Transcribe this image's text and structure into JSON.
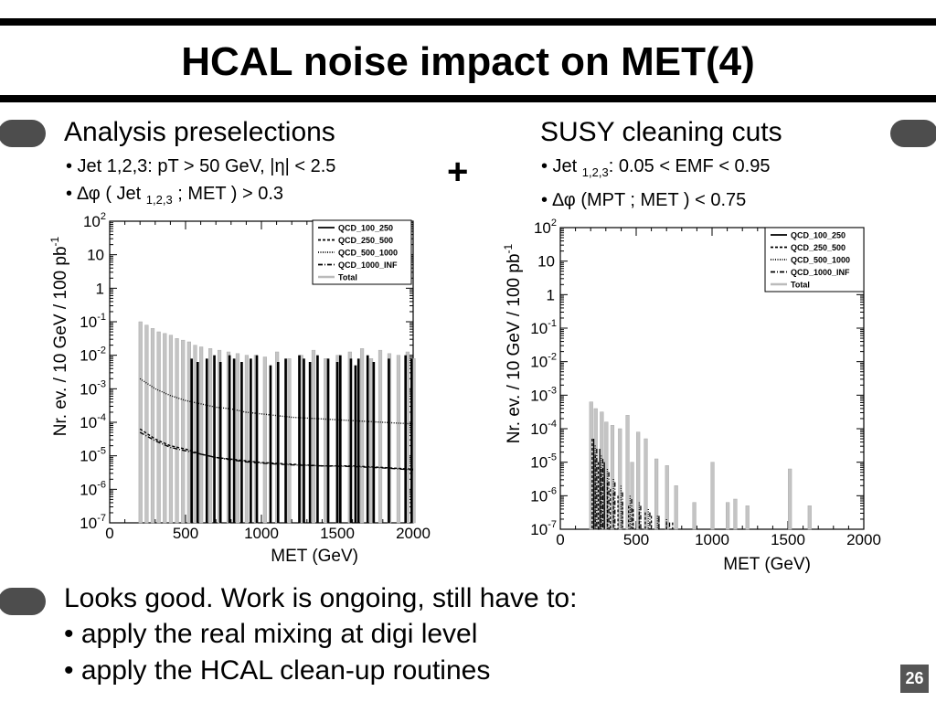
{
  "slide": {
    "title": "HCAL noise impact on MET(4)",
    "page_number": "26",
    "left_heading": "Analysis preselections",
    "left_bullets": [
      "• Jet 1,2,3: pT > 50 GeV, |η| < 2.5"
    ],
    "left_bullet2": {
      "pre": "• ∆φ ( Jet ",
      "sub": "1,2,3",
      "post": " ; MET ) > 0.3"
    },
    "plus": "+",
    "right_heading": "SUSY cleaning cuts",
    "right_bullet1": {
      "pre": "• Jet ",
      "sub": "1,2,3",
      "post": ": 0.05 < EMF < 0.95"
    },
    "right_bullet2": "• ∆φ (MPT ; MET ) < 0.75",
    "footer_lines": [
      "Looks good. Work is ongoing, still have to:",
      "• apply the real mixing at digi level",
      "• apply the HCAL clean-up routines"
    ]
  },
  "chart_data": [
    {
      "type": "bar",
      "name": "left",
      "xlabel": "MET (GeV)",
      "ylabel": "Nr. ev. / 10 GeV / 100 pb",
      "ylabel_sup": "-1",
      "xlim": [
        0,
        2000
      ],
      "ylim_log10": [
        -7,
        2
      ],
      "x_ticks": [
        "0",
        "500",
        "1000",
        "1500",
        "2000"
      ],
      "y_ticks": [
        {
          "base": "10",
          "exp": "2"
        },
        {
          "base": "10",
          "exp": ""
        },
        {
          "base": "1",
          "exp": ""
        },
        {
          "base": "10",
          "exp": "-1"
        },
        {
          "base": "10",
          "exp": "-2"
        },
        {
          "base": "10",
          "exp": "-3"
        },
        {
          "base": "10",
          "exp": "-4"
        },
        {
          "base": "10",
          "exp": "-5"
        },
        {
          "base": "10",
          "exp": "-6"
        },
        {
          "base": "10",
          "exp": "-7"
        }
      ],
      "legend": [
        "QCD_100_250",
        "QCD_250_500",
        "QCD_500_1000",
        "QCD_1000_INF",
        "Total"
      ],
      "legend_position": "top-right",
      "series": [
        {
          "name": "QCD_100_250",
          "style": "solid",
          "color": "#000000",
          "x": [
            540,
            580,
            640,
            690,
            730,
            790,
            820,
            870,
            930,
            970,
            1060,
            1110,
            1160,
            1250,
            1280,
            1320,
            1370,
            1440,
            1500,
            1520,
            1590,
            1620,
            1640,
            1700,
            1740,
            1840,
            1950,
            1990
          ],
          "log10": [
            -2.1,
            -2.2,
            -2.1,
            -2.0,
            -2.2,
            -2.0,
            -2.1,
            -2.2,
            -2.1,
            -2.0,
            -2.3,
            -2.2,
            -2.1,
            -2.0,
            -2.1,
            -2.2,
            -2.0,
            -2.1,
            -2.2,
            -2.0,
            -2.1,
            -2.3,
            -2.1,
            -2.0,
            -2.2,
            -2.1,
            -2.0,
            -2.1
          ]
        },
        {
          "name": "QCD_250_500",
          "style": "dashed",
          "color": "#000000",
          "x": [
            200,
            300,
            400,
            500,
            600,
            700,
            800,
            900,
            1000,
            1200,
            1400,
            1600,
            1800,
            2000
          ],
          "log10": [
            -4.2,
            -4.5,
            -4.7,
            -4.8,
            -4.95,
            -5.05,
            -5.1,
            -5.15,
            -5.2,
            -5.25,
            -5.3,
            -5.3,
            -5.35,
            -5.4
          ]
        },
        {
          "name": "QCD_500_1000",
          "style": "dotted",
          "color": "#000000",
          "x": [
            200,
            300,
            400,
            500,
            600,
            700,
            800,
            900,
            1000,
            1200,
            1400,
            1600,
            1800,
            2000
          ],
          "log10": [
            -2.7,
            -3.0,
            -3.2,
            -3.35,
            -3.45,
            -3.55,
            -3.6,
            -3.7,
            -3.75,
            -3.85,
            -3.9,
            -3.95,
            -4.0,
            -4.05
          ]
        },
        {
          "name": "QCD_1000_INF",
          "style": "dashdot",
          "color": "#000000",
          "x": [
            200,
            300,
            400,
            500,
            600,
            700,
            800,
            900,
            1000,
            1200,
            1400,
            1600,
            1800,
            2000
          ],
          "log10": [
            -4.3,
            -4.55,
            -4.75,
            -4.85,
            -4.95,
            -5.05,
            -5.12,
            -5.18,
            -5.22,
            -5.27,
            -5.3,
            -5.32,
            -5.36,
            -5.42
          ]
        },
        {
          "name": "Total",
          "style": "solid",
          "color": "#bbbbbb",
          "x": [
            200,
            240,
            280,
            320,
            360,
            400,
            440,
            480,
            520,
            560,
            600,
            660,
            720,
            780,
            840,
            900,
            960,
            1020,
            1100,
            1180,
            1260,
            1340,
            1420,
            1500,
            1580,
            1660,
            1720,
            1780,
            1840,
            1900,
            1960,
            2000
          ],
          "log10": [
            -1.0,
            -1.1,
            -1.2,
            -1.3,
            -1.35,
            -1.4,
            -1.5,
            -1.55,
            -1.6,
            -1.7,
            -1.75,
            -1.8,
            -1.85,
            -1.9,
            -1.95,
            -2.0,
            -2.0,
            -2.05,
            -1.9,
            -2.1,
            -2.0,
            -1.85,
            -2.1,
            -2.0,
            -1.9,
            -1.8,
            -2.1,
            -1.85,
            -1.95,
            -2.0,
            -1.9,
            -2.1
          ]
        }
      ]
    },
    {
      "type": "bar",
      "name": "right",
      "xlabel": "MET (GeV)",
      "ylabel": "Nr. ev. / 10 GeV / 100 pb",
      "ylabel_sup": "-1",
      "xlim": [
        0,
        2000
      ],
      "ylim_log10": [
        -7,
        2
      ],
      "x_ticks": [
        "0",
        "500",
        "1000",
        "1500",
        "2000"
      ],
      "y_ticks": [
        {
          "base": "10",
          "exp": "2"
        },
        {
          "base": "10",
          "exp": ""
        },
        {
          "base": "1",
          "exp": ""
        },
        {
          "base": "10",
          "exp": "-1"
        },
        {
          "base": "10",
          "exp": "-2"
        },
        {
          "base": "10",
          "exp": "-3"
        },
        {
          "base": "10",
          "exp": "-4"
        },
        {
          "base": "10",
          "exp": "-5"
        },
        {
          "base": "10",
          "exp": "-6"
        },
        {
          "base": "10",
          "exp": "-7"
        }
      ],
      "legend": [
        "QCD_100_250",
        "QCD_250_500",
        "QCD_500_1000",
        "QCD_1000_INF",
        "Total"
      ],
      "legend_position": "top-right",
      "series": [
        {
          "name": "QCD_100_250",
          "style": "solid",
          "color": "#000000",
          "x": [
            220,
            260,
            290
          ],
          "log10": [
            -4.3,
            -4.6,
            -5.0
          ]
        },
        {
          "name": "QCD_250_500",
          "style": "dashed",
          "color": "#000000",
          "x": [
            210,
            230,
            250,
            270,
            290,
            310,
            330,
            350,
            380,
            410,
            450,
            480,
            520,
            560,
            600,
            650,
            700,
            740
          ],
          "log10": [
            -4.3,
            -4.8,
            -5.0,
            -5.2,
            -5.4,
            -5.6,
            -5.8,
            -5.9,
            -6.0,
            -6.2,
            -6.3,
            -6.4,
            -6.5,
            -6.5,
            -6.6,
            -6.7,
            -6.8,
            -6.8
          ]
        },
        {
          "name": "QCD_500_1000",
          "style": "dotted",
          "color": "#000000",
          "x": [
            230,
            270,
            310,
            350,
            400,
            460,
            520,
            580,
            640,
            700
          ],
          "log10": [
            -4.5,
            -4.8,
            -5.2,
            -5.5,
            -5.7,
            -6.0,
            -6.2,
            -6.4,
            -6.6,
            -6.7
          ]
        },
        {
          "name": "QCD_1000_INF",
          "style": "dashdot",
          "color": "#000000",
          "x": [
            240,
            280,
            320,
            360,
            410,
            470,
            530,
            590,
            650,
            720
          ],
          "log10": [
            -4.6,
            -4.9,
            -5.3,
            -5.6,
            -5.9,
            -6.1,
            -6.3,
            -6.5,
            -6.6,
            -6.8
          ]
        },
        {
          "name": "Total",
          "style": "solid",
          "color": "#bbbbbb",
          "x": [
            200,
            230,
            270,
            300,
            340,
            390,
            440,
            470,
            510,
            560,
            630,
            700,
            760,
            880,
            1000,
            1100,
            1150,
            1230,
            1510,
            1640
          ],
          "log10": [
            -3.2,
            -3.4,
            -3.5,
            -3.8,
            -3.9,
            -4.0,
            -3.6,
            -5.0,
            -4.1,
            -4.3,
            -4.9,
            -5.1,
            -5.7,
            -6.2,
            -5.0,
            -6.2,
            -6.1,
            -6.3,
            -5.2,
            -6.3
          ]
        }
      ]
    }
  ]
}
